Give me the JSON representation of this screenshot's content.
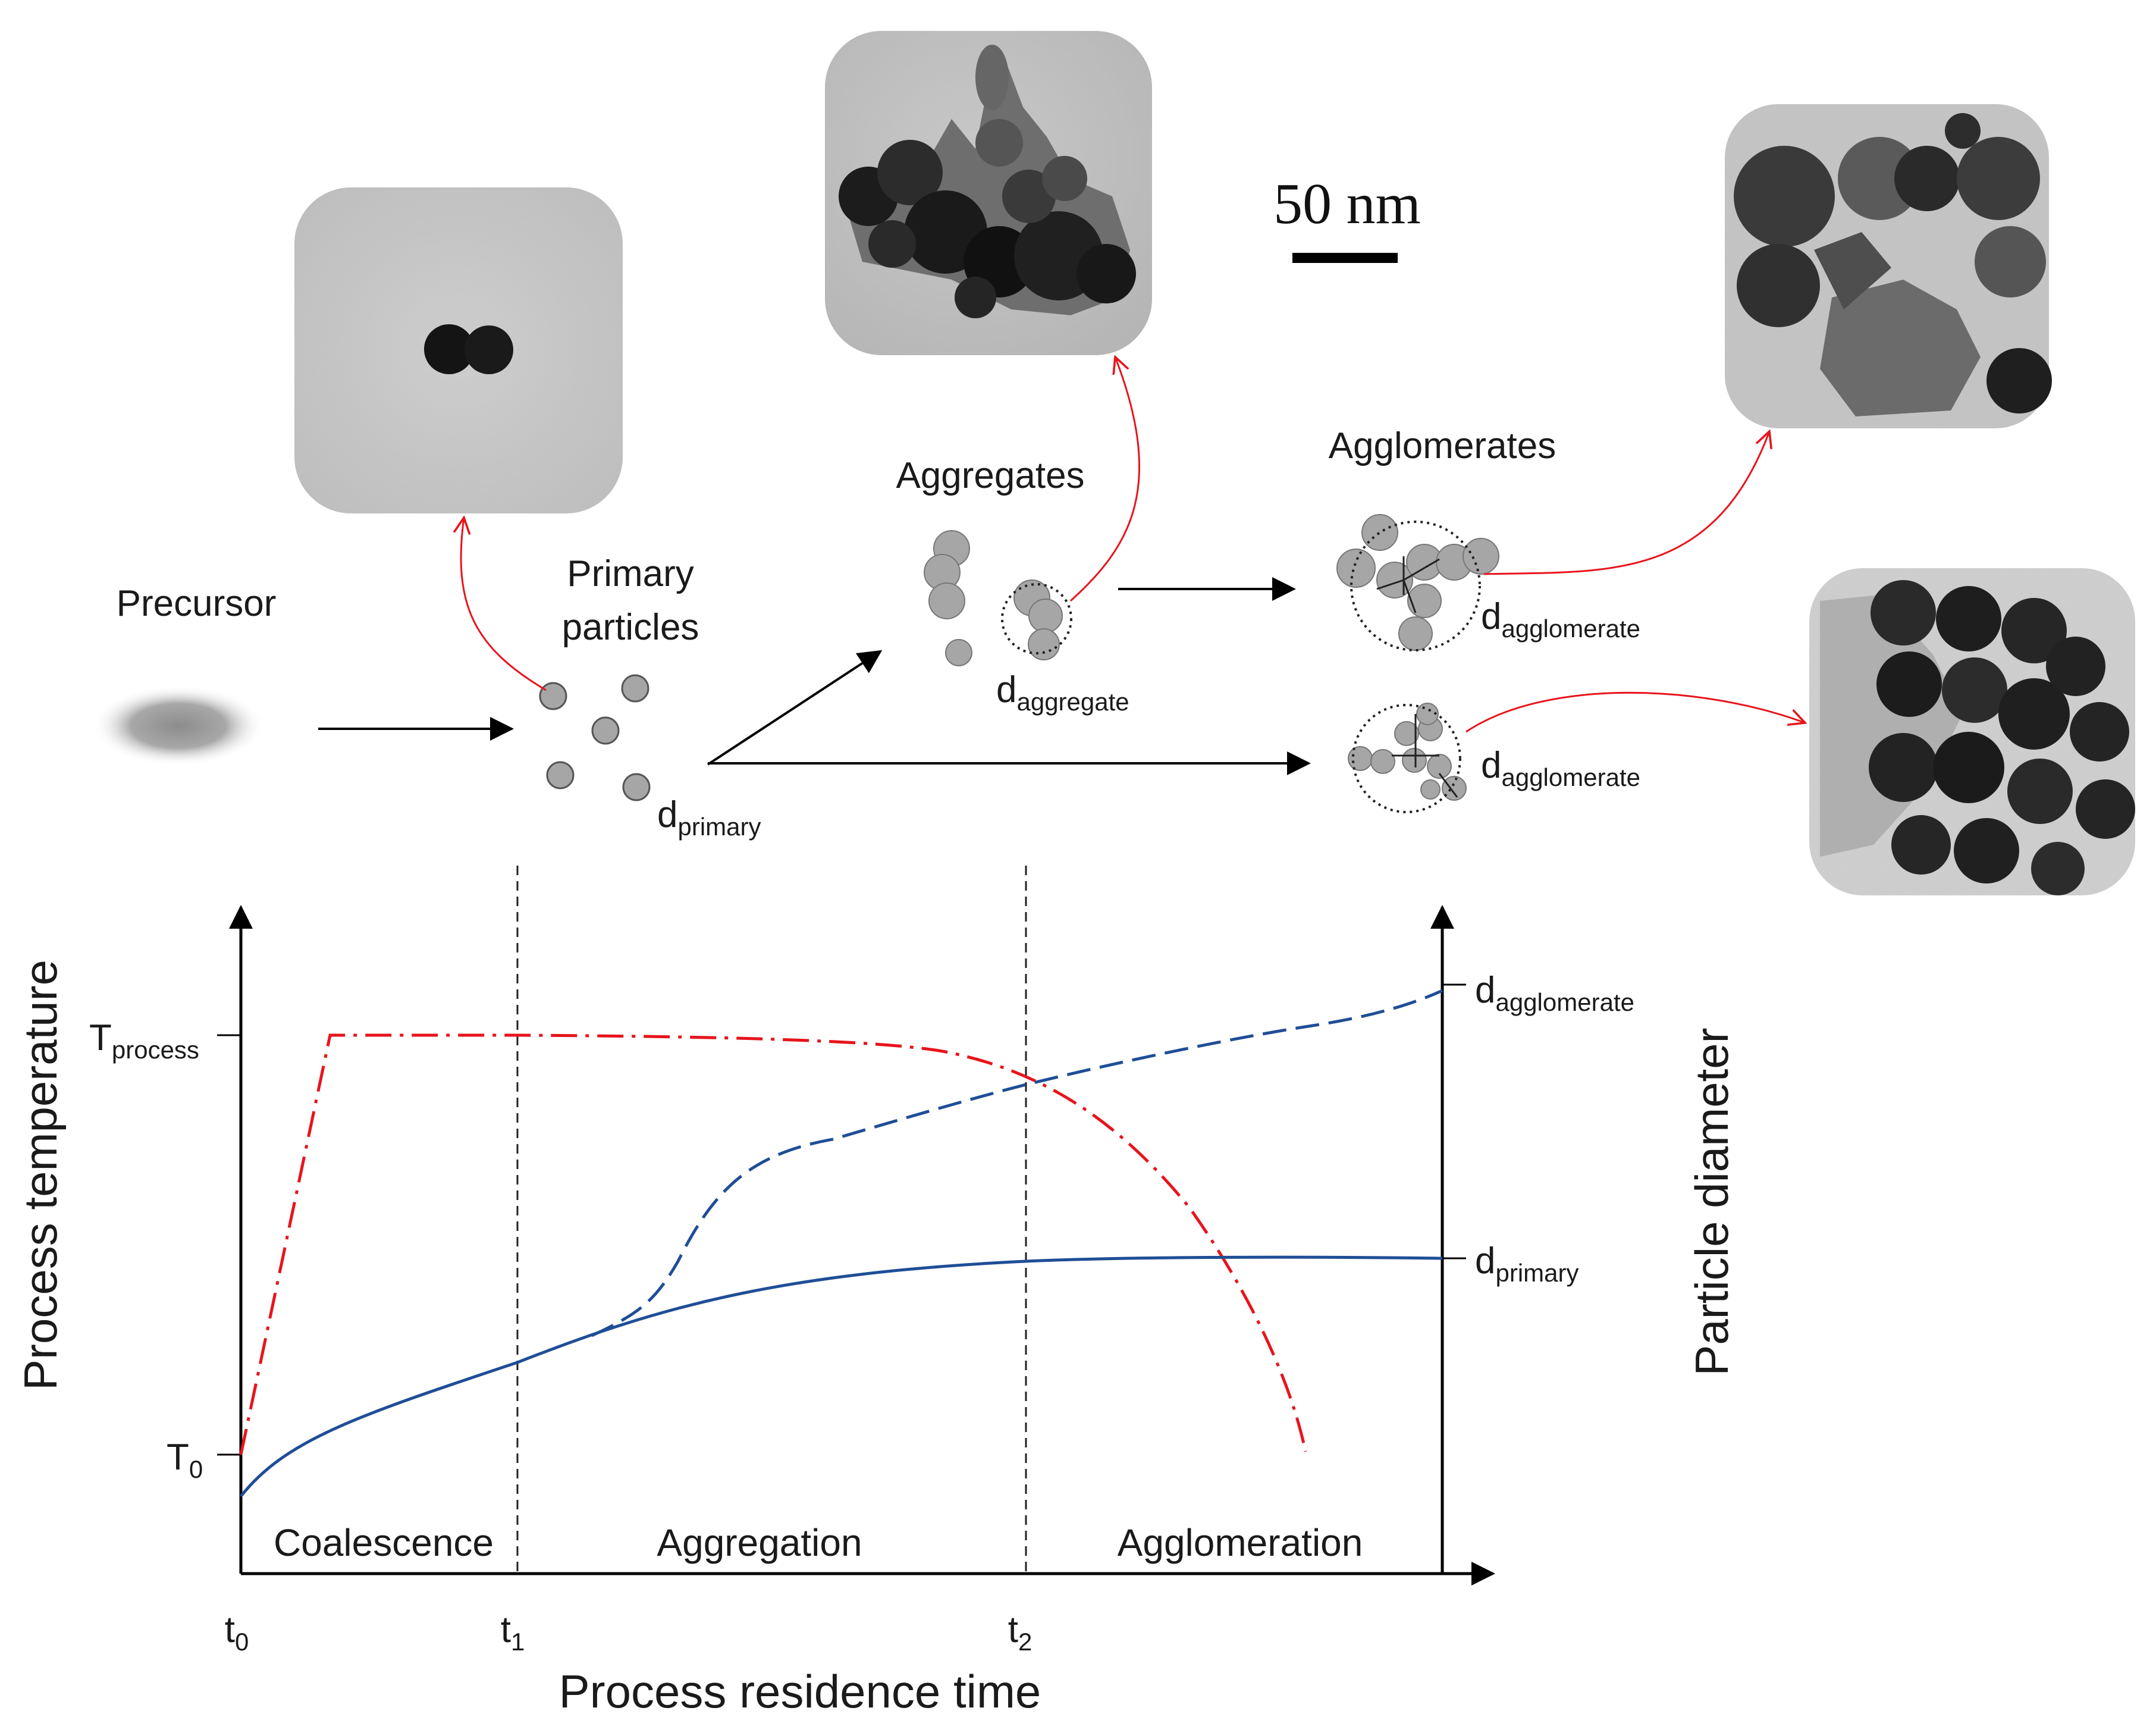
{
  "schematic": {
    "precursor_label": "Precursor",
    "primary_label_line1": "Primary",
    "primary_label_line2": "particles",
    "aggregates_label": "Aggregates",
    "agglomerates_label": "Agglomerates",
    "scale_bar_label": "50 nm",
    "d_letter": "d",
    "d_primary_sub": "primary",
    "d_aggregate_sub": "aggregate",
    "d_agglomerate_sub": "agglomerate"
  },
  "tem_images": [
    {
      "id": "primary",
      "description_icon": "tem-micrograph-icon"
    },
    {
      "id": "aggregate",
      "description_icon": "tem-micrograph-icon"
    },
    {
      "id": "agglomerate-upper",
      "description_icon": "tem-micrograph-icon"
    },
    {
      "id": "agglomerate-lower",
      "description_icon": "tem-micrograph-icon"
    }
  ],
  "graph": {
    "x_axis_title": "Process residence time",
    "y_left_title": "Process temperature",
    "y_right_title": "Particle diameter",
    "t_letter": "t",
    "x_ticks": [
      "0",
      "1",
      "2"
    ],
    "T_letter": "T",
    "y_left_ticks": [
      {
        "sub": "process"
      },
      {
        "sub": "0"
      }
    ],
    "y_right_ticks": [
      {
        "sub": "agglomerate"
      },
      {
        "sub": "primary"
      }
    ],
    "phases": [
      "Coalescence",
      "Aggregation",
      "Agglomeration"
    ],
    "colors": {
      "temperature": "#e8141c",
      "diameter": "#1f4e96",
      "connector": "#e8141c",
      "particle": "#a6a6a6"
    }
  }
}
